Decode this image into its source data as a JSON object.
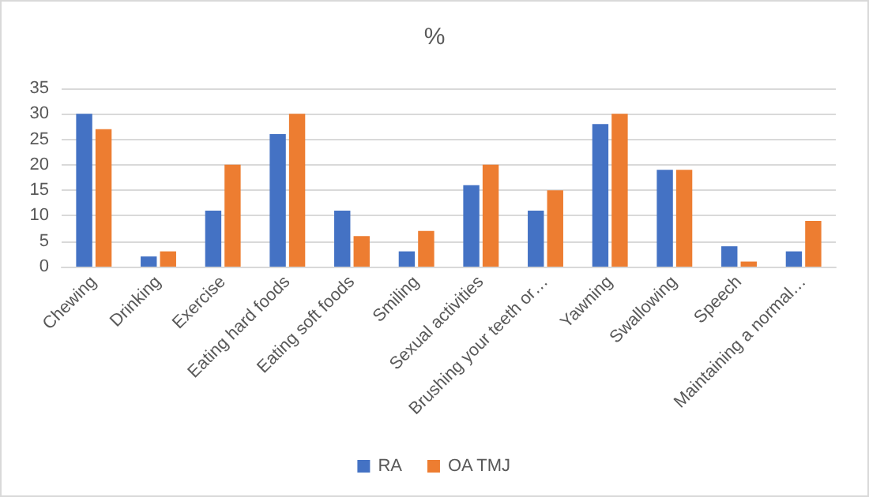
{
  "chart_data": {
    "type": "bar",
    "title": "%",
    "categories": [
      "Chewing",
      "Drinking",
      "Exercise",
      "Eating hard foods",
      "Eating soft foods",
      "Smiling",
      "Sexual activities",
      "Brushing your teeth or…",
      "Yawning",
      "Swallowing",
      "Speech",
      "Maintaining a normal…"
    ],
    "series": [
      {
        "name": "RA",
        "color": "#4472c4",
        "values": [
          30,
          2,
          11,
          26,
          11,
          3,
          16,
          11,
          28,
          19,
          4,
          3
        ]
      },
      {
        "name": "OA TMJ",
        "color": "#ed7d31",
        "values": [
          27,
          3,
          20,
          30,
          6,
          7,
          20,
          15,
          30,
          19,
          1,
          9
        ]
      }
    ],
    "ylim": [
      0,
      35
    ],
    "yticks": [
      0,
      5,
      10,
      15,
      20,
      25,
      30,
      35
    ],
    "grid": "y",
    "legend": "bottom"
  }
}
